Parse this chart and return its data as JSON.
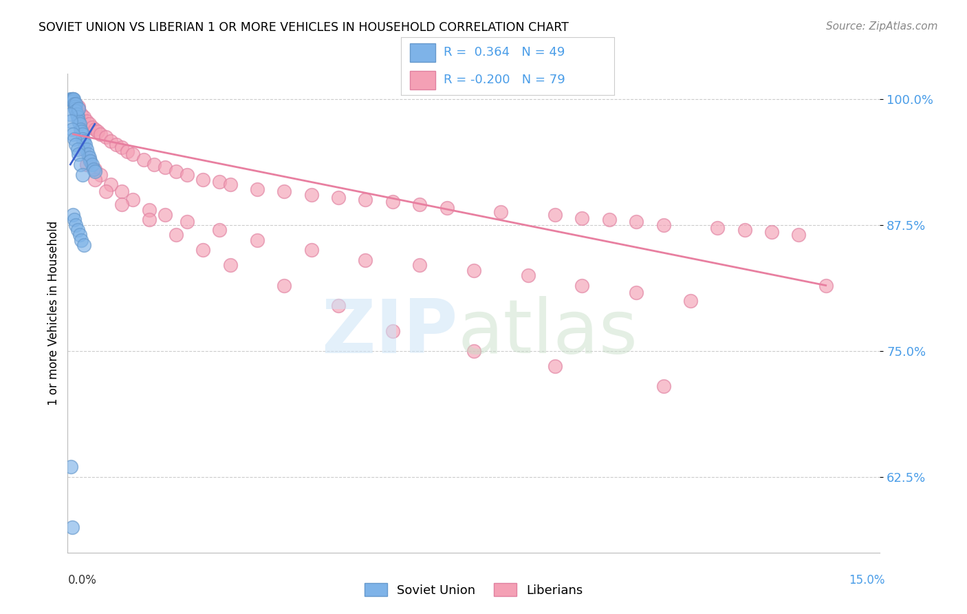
{
  "title": "SOVIET UNION VS LIBERIAN 1 OR MORE VEHICLES IN HOUSEHOLD CORRELATION CHART",
  "source_text": "Source: ZipAtlas.com",
  "ylabel": "1 or more Vehicles in Household",
  "xlim": [
    0.0,
    15.0
  ],
  "ylim": [
    55.0,
    102.5
  ],
  "ytick_labels": [
    "62.5%",
    "75.0%",
    "87.5%",
    "100.0%"
  ],
  "ytick_values": [
    62.5,
    75.0,
    87.5,
    100.0
  ],
  "legend_soviet_r": "0.364",
  "legend_soviet_n": "49",
  "legend_liberian_r": "-0.200",
  "legend_liberian_n": "79",
  "soviet_color": "#7EB3E8",
  "liberian_color": "#F4A0B5",
  "soviet_edge_color": "#6699CC",
  "liberian_edge_color": "#E080A0",
  "soviet_line_color": "#3A5FCD",
  "liberian_line_color": "#E87FA0",
  "background_color": "#FFFFFF",
  "soviet_x": [
    0.05,
    0.07,
    0.08,
    0.09,
    0.1,
    0.1,
    0.11,
    0.12,
    0.13,
    0.14,
    0.15,
    0.15,
    0.17,
    0.18,
    0.2,
    0.2,
    0.22,
    0.23,
    0.25,
    0.27,
    0.28,
    0.3,
    0.32,
    0.35,
    0.38,
    0.4,
    0.42,
    0.45,
    0.48,
    0.5,
    0.05,
    0.06,
    0.08,
    0.1,
    0.12,
    0.15,
    0.18,
    0.2,
    0.23,
    0.27,
    0.1,
    0.12,
    0.15,
    0.18,
    0.22,
    0.25,
    0.3,
    0.06,
    0.08
  ],
  "soviet_y": [
    100.0,
    100.0,
    100.0,
    100.0,
    100.0,
    99.8,
    100.0,
    99.5,
    99.2,
    99.0,
    99.5,
    98.8,
    98.5,
    98.2,
    97.8,
    99.0,
    97.5,
    97.0,
    96.8,
    96.5,
    96.0,
    95.8,
    95.5,
    95.0,
    94.5,
    94.2,
    93.8,
    93.5,
    93.0,
    92.8,
    98.5,
    97.8,
    97.0,
    96.5,
    96.0,
    95.5,
    95.0,
    94.5,
    93.5,
    92.5,
    88.5,
    88.0,
    87.5,
    87.0,
    86.5,
    86.0,
    85.5,
    63.5,
    57.5
  ],
  "liberian_x": [
    0.1,
    0.15,
    0.2,
    0.25,
    0.3,
    0.35,
    0.4,
    0.45,
    0.5,
    0.55,
    0.6,
    0.7,
    0.8,
    0.9,
    1.0,
    1.1,
    1.2,
    1.4,
    1.6,
    1.8,
    2.0,
    2.2,
    2.5,
    2.8,
    3.0,
    3.5,
    4.0,
    4.5,
    5.0,
    5.5,
    6.0,
    6.5,
    7.0,
    8.0,
    9.0,
    9.5,
    10.0,
    10.5,
    11.0,
    12.0,
    12.5,
    13.0,
    13.5,
    0.2,
    0.3,
    0.4,
    0.5,
    0.6,
    0.8,
    1.0,
    1.2,
    1.5,
    1.8,
    2.2,
    2.8,
    3.5,
    4.5,
    5.5,
    6.5,
    7.5,
    8.5,
    9.5,
    10.5,
    11.5,
    0.35,
    0.5,
    0.7,
    1.0,
    1.5,
    2.0,
    2.5,
    3.0,
    4.0,
    5.0,
    6.0,
    7.5,
    9.0,
    11.0,
    14.0
  ],
  "liberian_y": [
    100.0,
    99.5,
    99.0,
    98.5,
    98.2,
    97.8,
    97.5,
    97.2,
    97.0,
    96.8,
    96.5,
    96.2,
    95.8,
    95.5,
    95.2,
    94.8,
    94.5,
    94.0,
    93.5,
    93.2,
    92.8,
    92.5,
    92.0,
    91.8,
    91.5,
    91.0,
    90.8,
    90.5,
    90.2,
    90.0,
    89.8,
    89.5,
    89.2,
    88.8,
    88.5,
    88.2,
    88.0,
    87.8,
    87.5,
    87.2,
    87.0,
    86.8,
    86.5,
    99.2,
    95.0,
    94.0,
    93.0,
    92.5,
    91.5,
    90.8,
    90.0,
    89.0,
    88.5,
    87.8,
    87.0,
    86.0,
    85.0,
    84.0,
    83.5,
    83.0,
    82.5,
    81.5,
    80.8,
    80.0,
    93.5,
    92.0,
    90.8,
    89.5,
    88.0,
    86.5,
    85.0,
    83.5,
    81.5,
    79.5,
    77.0,
    75.0,
    73.5,
    71.5,
    81.5
  ],
  "soviet_trendline_x": [
    0.05,
    0.5
  ],
  "soviet_trendline_y": [
    93.5,
    97.5
  ],
  "liberian_trendline_x": [
    0.1,
    14.0
  ],
  "liberian_trendline_y": [
    96.5,
    81.5
  ]
}
